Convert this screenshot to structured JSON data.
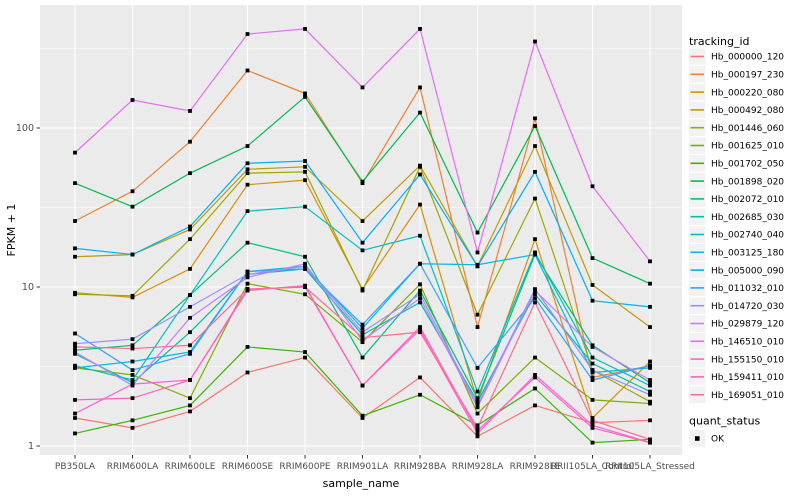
{
  "colors": {
    "panel_bg": "#EBEBEB",
    "grid": "#FFFFFF",
    "axis_text": "#4D4D4D",
    "axis_title": "#000000",
    "marker": "#000000",
    "legend_key_bg": "#F2F2F2"
  },
  "chart_data": {
    "type": "line",
    "title": "",
    "xlabel": "sample_name",
    "ylabel": "FPKM + 1",
    "y_scale": "log10",
    "y_ticks": [
      1,
      10,
      100
    ],
    "y_minor_ticks": [
      3.1623,
      31.623,
      316.23
    ],
    "ylim": [
      1,
      560
    ],
    "grid": true,
    "legend_position": "right",
    "legend_title": "tracking_id",
    "quant_legend_title": "quant_status",
    "quant_legend_items": [
      "OK"
    ],
    "marker": "black-square",
    "x_categories": [
      "PB350LA",
      "RRIM600LA",
      "RRIM600LE",
      "RRIM600SE",
      "RRIM600PE",
      "RRIM901LA",
      "RRIM928BA",
      "RRIM928LA",
      "RRIM928LE",
      "RRII105LA_Control",
      "RRII105LA_Stressed"
    ],
    "series": [
      {
        "name": "Hb_000000_120",
        "color": "#F8766D",
        "values": [
          1.5,
          1.3,
          1.65,
          2.9,
          3.6,
          1.5,
          2.7,
          1.15,
          1.8,
          1.4,
          1.45
        ]
      },
      {
        "name": "Hb_000197_230",
        "color": "#EA8331",
        "values": [
          26,
          40,
          82,
          230,
          165,
          45,
          180,
          5.6,
          115,
          2.7,
          3.2
        ]
      },
      {
        "name": "Hb_000220_080",
        "color": "#D89000",
        "values": [
          9.2,
          8.6,
          13,
          44,
          47,
          9.7,
          33,
          1.9,
          20,
          1.5,
          3.4
        ]
      },
      {
        "name": "Hb_000492_080",
        "color": "#C09B00",
        "values": [
          15.5,
          16,
          23,
          55,
          57,
          26,
          58,
          13.5,
          77,
          10.3,
          5.6
        ]
      },
      {
        "name": "Hb_001446_060",
        "color": "#A3A500",
        "values": [
          9.0,
          8.8,
          20,
          52,
          53,
          9.5,
          57,
          6.7,
          36,
          3.0,
          1.9
        ]
      },
      {
        "name": "Hb_001625_010",
        "color": "#7CAE00",
        "values": [
          3.1,
          2.8,
          2.0,
          10.5,
          9.0,
          4.5,
          10.4,
          1.6,
          3.6,
          1.95,
          1.85
        ]
      },
      {
        "name": "Hb_001702_050",
        "color": "#39B600",
        "values": [
          1.2,
          1.45,
          1.8,
          4.2,
          3.9,
          1.55,
          2.1,
          1.35,
          2.3,
          1.05,
          1.1
        ]
      },
      {
        "name": "Hb_001898_020",
        "color": "#00BB4E",
        "values": [
          45,
          32,
          52,
          77,
          157,
          46,
          125,
          22,
          103,
          15.2,
          10.5
        ]
      },
      {
        "name": "Hb_002072_010",
        "color": "#00BF7D",
        "values": [
          4.0,
          4.3,
          8.9,
          19,
          15.5,
          3.6,
          9.5,
          2.0,
          16,
          4.3,
          2.5
        ]
      },
      {
        "name": "Hb_002685_030",
        "color": "#00C1A3",
        "values": [
          3.8,
          2.5,
          5.2,
          12,
          13,
          5.0,
          8.0,
          1.9,
          9.0,
          3.3,
          2.2
        ]
      },
      {
        "name": "Hb_002740_040",
        "color": "#00BFC4",
        "values": [
          3.2,
          2.6,
          8.9,
          30,
          32,
          17,
          21,
          2.2,
          16.5,
          3.6,
          2.4
        ]
      },
      {
        "name": "Hb_003125_180",
        "color": "#00BAE0",
        "values": [
          3.1,
          3.4,
          3.9,
          12.5,
          13.5,
          5.5,
          14,
          13.8,
          16,
          2.9,
          3.1
        ]
      },
      {
        "name": "Hb_005000_090",
        "color": "#00B0F6",
        "values": [
          17.5,
          16,
          24,
          60,
          62,
          19,
          51,
          13.5,
          53,
          8.2,
          7.5
        ]
      },
      {
        "name": "Hb_011032_010",
        "color": "#35A2FF",
        "values": [
          5.1,
          3.0,
          3.8,
          12.5,
          13,
          5.8,
          14,
          3.1,
          8.5,
          2.6,
          3.2
        ]
      },
      {
        "name": "Hb_014720_030",
        "color": "#9590FF",
        "values": [
          4.4,
          4.7,
          7.5,
          12,
          13.5,
          5.2,
          9.0,
          1.8,
          9.7,
          3.0,
          2.1
        ]
      },
      {
        "name": "Hb_029879_120",
        "color": "#C77CFF",
        "values": [
          3.9,
          2.4,
          6.4,
          11.5,
          14,
          4.6,
          8.5,
          1.75,
          9.5,
          4.2,
          2.6
        ]
      },
      {
        "name": "Hb_146510_010",
        "color": "#E76BF3",
        "values": [
          70,
          150,
          128,
          390,
          420,
          180,
          420,
          16.5,
          350,
          43,
          14.5
        ]
      },
      {
        "name": "Hb_155150_010",
        "color": "#FA62DB",
        "values": [
          1.6,
          2.45,
          2.6,
          9.7,
          10,
          2.4,
          5.4,
          1.2,
          2.8,
          1.35,
          1.05
        ]
      },
      {
        "name": "Hb_159411_010",
        "color": "#FF62BC",
        "values": [
          1.95,
          2.0,
          2.6,
          9.5,
          10.2,
          2.4,
          5.6,
          1.25,
          2.7,
          1.3,
          1.05
        ]
      },
      {
        "name": "Hb_169051_010",
        "color": "#FF6A98",
        "values": [
          4.2,
          4.1,
          4.3,
          9.7,
          10,
          4.8,
          5.2,
          1.3,
          8.0,
          1.45,
          1.1
        ]
      }
    ]
  }
}
